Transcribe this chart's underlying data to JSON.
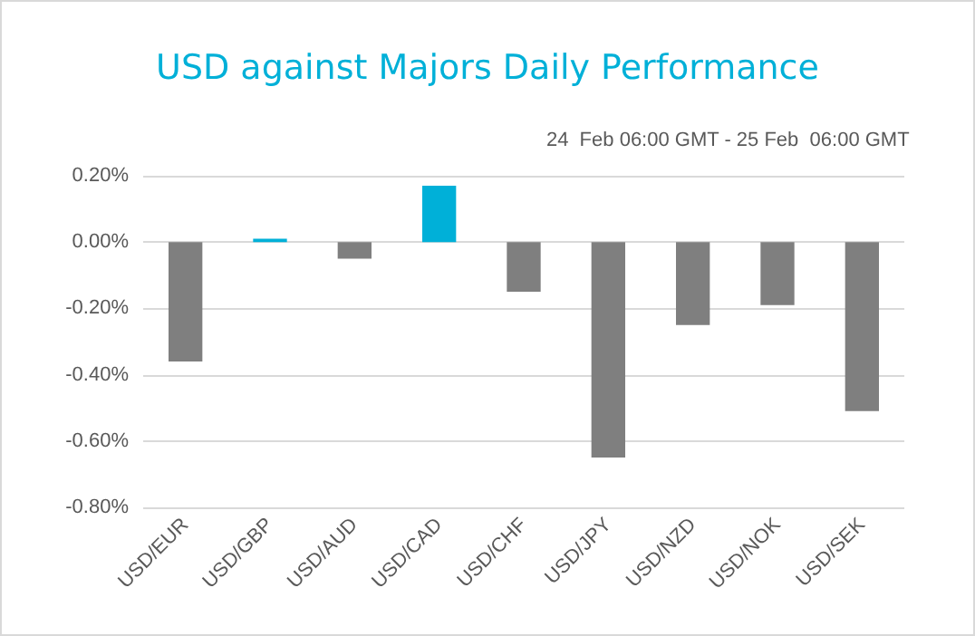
{
  "chart_data": {
    "type": "bar",
    "title": "USD against Majors Daily Performance",
    "subtitle": "24  Feb 06:00 GMT - 25 Feb  06:00 GMT",
    "categories": [
      "USD/EUR",
      "USD/GBP",
      "USD/AUD",
      "USD/CAD",
      "USD/CHF",
      "USD/JPY",
      "USD/NZD",
      "USD/NOK",
      "USD/SEK"
    ],
    "values": [
      -0.36,
      0.01,
      -0.05,
      0.17,
      -0.15,
      -0.65,
      -0.25,
      -0.19,
      -0.51
    ],
    "colors": [
      "#7f7f7f",
      "#00b0d8",
      "#7f7f7f",
      "#00b0d8",
      "#7f7f7f",
      "#7f7f7f",
      "#7f7f7f",
      "#7f7f7f",
      "#7f7f7f"
    ],
    "ylim": [
      -0.8,
      0.2
    ],
    "yticks": [
      {
        "value": -0.8,
        "label": "-0.80%"
      },
      {
        "value": -0.6,
        "label": "-0.60%"
      },
      {
        "value": -0.4,
        "label": "-0.40%"
      },
      {
        "value": -0.2,
        "label": "-0.20%"
      },
      {
        "value": 0,
        "label": "0.00%"
      },
      {
        "value": 0.2,
        "label": "0.20%"
      }
    ],
    "grid": "y"
  }
}
